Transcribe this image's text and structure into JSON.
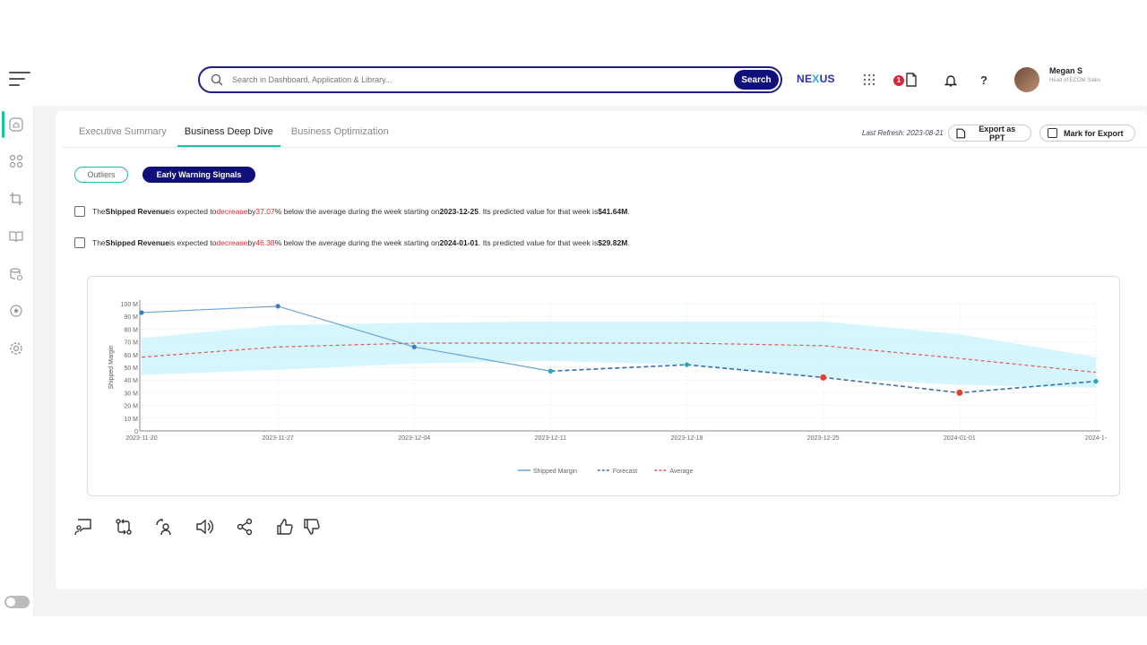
{
  "header": {
    "search_placeholder": "Search in Dashboard, Application & Library...",
    "search_button": "Search",
    "brand_prefix": "NE",
    "brand_x": "X",
    "brand_suffix": "US",
    "notification_count": "1",
    "help_label": "?",
    "user_name": "Megan S",
    "user_role": "Head of ECOM Sales"
  },
  "tabs": [
    "Executive Summary",
    "Business Deep Dive",
    "Business Optimization"
  ],
  "active_tab": "Business Deep Dive",
  "toolbar": {
    "last_refresh": "Last Refresh: 2023-08-21",
    "export_ppt": "Export as PPT",
    "mark_export": "Mark for Export"
  },
  "filters": {
    "outliers": "Outliers",
    "early_warning": "Early Warning Signals"
  },
  "alerts": [
    {
      "pre": "The ",
      "metric": "Shipped Revenue",
      "mid1": " is expected to ",
      "dir": "decrease",
      "mid2": " by ",
      "pct": "37.07",
      "mid3": "% below the average during the week starting on ",
      "date": "2023-12-25",
      "mid4": ". Its predicted value for that week is ",
      "value": "$41.64M",
      "end": "."
    },
    {
      "pre": "The ",
      "metric": "Shipped Revenue",
      "mid1": " is expected to ",
      "dir": "decrease",
      "mid2": " by ",
      "pct": "46.38",
      "mid3": "% below the average during the week starting on ",
      "date": "2024-01-01",
      "mid4": ". Its predicted value for that week is ",
      "value": "$29.82M",
      "end": "."
    }
  ],
  "chart_data": {
    "type": "line",
    "ylabel": "Shipped Margin",
    "ylim": [
      0,
      100
    ],
    "y_ticks": [
      "0",
      "10 M",
      "20 M",
      "30 M",
      "40 M",
      "50 M",
      "60 M",
      "70 M",
      "80 M",
      "90 M",
      "100 M"
    ],
    "categories": [
      "2023-11-20",
      "2023-11-27",
      "2023-12-04",
      "2023-12-11",
      "2023-12-18",
      "2023-12-25",
      "2024-01-01",
      "2024-1-"
    ],
    "series": [
      {
        "name": "Shipped Margin",
        "color": "#6aa6d6",
        "values": [
          93,
          98,
          66,
          47,
          null,
          null,
          null,
          null
        ]
      },
      {
        "name": "Forecast",
        "color": "#3b6fb0",
        "values": [
          null,
          null,
          null,
          47,
          52,
          42,
          30,
          39
        ]
      },
      {
        "name": "Average",
        "color": "#e05a5a",
        "values": [
          58,
          66,
          69,
          69,
          69,
          67,
          57,
          46
        ]
      }
    ],
    "band": {
      "upper": [
        73,
        83,
        85,
        86,
        86,
        86,
        76,
        58
      ],
      "lower": [
        44,
        48,
        53,
        55,
        52,
        42,
        36,
        34
      ]
    },
    "anomalies": [
      5,
      6
    ],
    "grid": true,
    "legend_position": "bottom"
  },
  "icons": [
    "feedback-icon",
    "compare-icon",
    "user-sync-icon",
    "speaker-icon",
    "share-icon",
    "thumbs-up-icon",
    "thumbs-down-icon"
  ]
}
